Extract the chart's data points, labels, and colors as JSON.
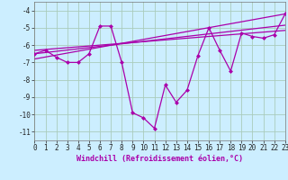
{
  "xlabel": "Windchill (Refroidissement éolien,°C)",
  "bg_color": "#cceeff",
  "grid_color": "#aaccbb",
  "line_color": "#aa00aa",
  "series": [
    [
      0,
      -6.5
    ],
    [
      1,
      -6.3
    ],
    [
      2,
      -6.7
    ],
    [
      3,
      -7.0
    ],
    [
      4,
      -7.0
    ],
    [
      5,
      -6.5
    ],
    [
      6,
      -4.9
    ],
    [
      7,
      -4.9
    ],
    [
      8,
      -7.0
    ],
    [
      9,
      -9.9
    ],
    [
      10,
      -10.2
    ],
    [
      11,
      -10.8
    ],
    [
      12,
      -8.3
    ],
    [
      13,
      -9.3
    ],
    [
      14,
      -8.6
    ],
    [
      15,
      -6.6
    ],
    [
      16,
      -5.0
    ],
    [
      17,
      -6.3
    ],
    [
      18,
      -7.5
    ],
    [
      19,
      -5.3
    ],
    [
      20,
      -5.5
    ],
    [
      21,
      -5.6
    ],
    [
      22,
      -5.4
    ],
    [
      23,
      -4.2
    ]
  ],
  "trend_lines": [
    [
      [
        0,
        -6.8
      ],
      [
        23,
        -4.2
      ]
    ],
    [
      [
        0,
        -6.5
      ],
      [
        23,
        -4.85
      ]
    ],
    [
      [
        0,
        -6.3
      ],
      [
        23,
        -5.15
      ]
    ]
  ],
  "xlim": [
    0,
    23
  ],
  "ylim": [
    -11.5,
    -3.5
  ],
  "yticks": [
    -11,
    -10,
    -9,
    -8,
    -7,
    -6,
    -5,
    -4
  ],
  "xticks": [
    0,
    1,
    2,
    3,
    4,
    5,
    6,
    7,
    8,
    9,
    10,
    11,
    12,
    13,
    14,
    15,
    16,
    17,
    18,
    19,
    20,
    21,
    22,
    23
  ],
  "tick_fontsize": 5.5,
  "xlabel_fontsize": 6.0,
  "marker_size": 2.5,
  "line_width": 0.9
}
